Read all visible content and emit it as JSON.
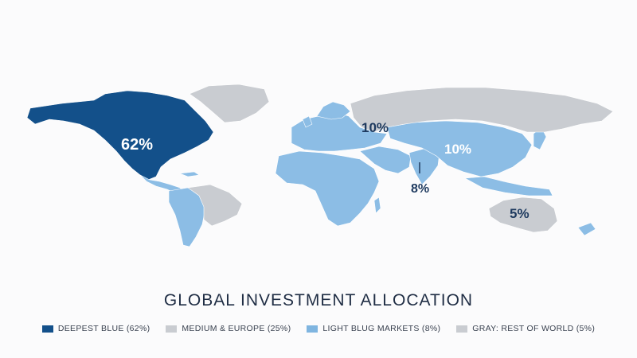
{
  "title": "GLOBAL INVESTMENT ALLOCATION",
  "colors": {
    "deepest_blue": "#13508a",
    "light_blue": "#8cbde5",
    "mid_blue": "#6aa8de",
    "gray": "#c9ccd1",
    "label_dark": "#1e3a5f",
    "label_white": "#ffffff"
  },
  "map_labels": {
    "north_america": "62%",
    "russia": "10%",
    "east_asia": "10%",
    "india": "8%",
    "australia": "5%"
  },
  "legend": [
    {
      "label": "DEEPEST BLUE (62%)",
      "color": "#13508a"
    },
    {
      "label": "MEDIUM & EUROPE (25%)",
      "color": "#c9ccd1"
    },
    {
      "label": "LIGHT BLUG MARKETS (8%)",
      "color": "#7fb5e0"
    },
    {
      "label": "GRAY: REST OF WORLD (5%)",
      "color": "#c9ccd1"
    }
  ]
}
